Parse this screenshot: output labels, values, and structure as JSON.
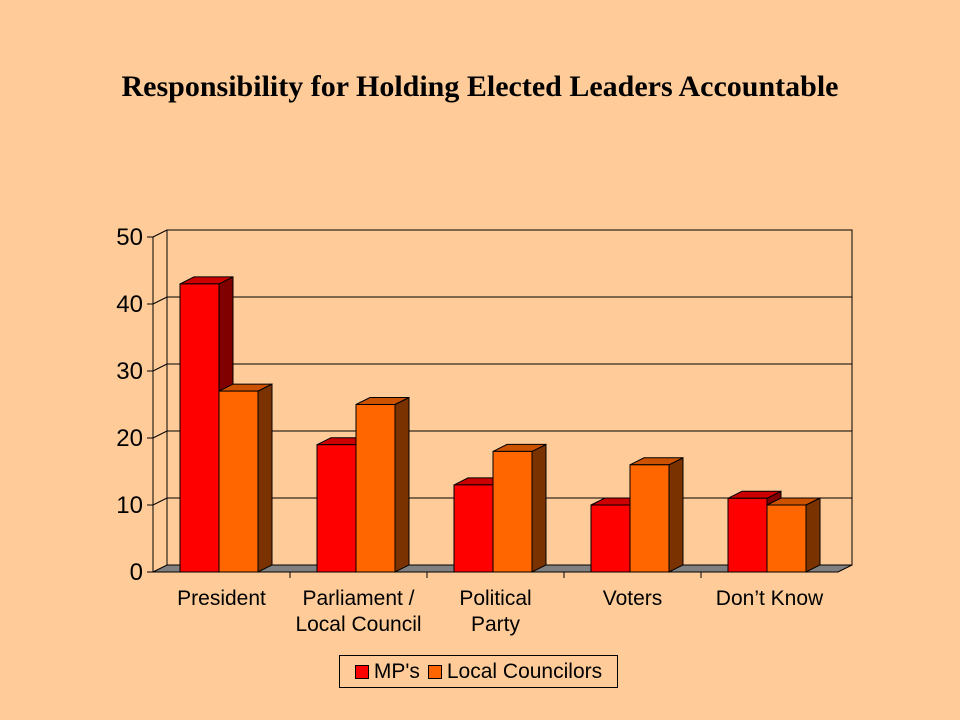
{
  "chart_data": {
    "type": "bar",
    "title": "Responsibility for Holding Elected Leaders Accountable",
    "categories": [
      [
        "President"
      ],
      [
        "Parliament /",
        "Local Council"
      ],
      [
        "Political",
        "Party"
      ],
      [
        "Voters"
      ],
      [
        "Don’t Know"
      ]
    ],
    "series": [
      {
        "name": "MP's",
        "values": [
          43,
          19,
          13,
          10,
          11
        ],
        "color": "#FF0000",
        "top": "#CC0000",
        "side": "#800000"
      },
      {
        "name": "Local Councilors",
        "values": [
          27,
          25,
          18,
          16,
          10
        ],
        "color": "#FF6600",
        "top": "#CC5200",
        "side": "#7A3300"
      }
    ],
    "ylim": [
      0,
      50
    ],
    "yticks": [
      "0",
      "10",
      "20",
      "30",
      "40",
      "50"
    ],
    "grid": true,
    "legend_position": "bottom"
  }
}
